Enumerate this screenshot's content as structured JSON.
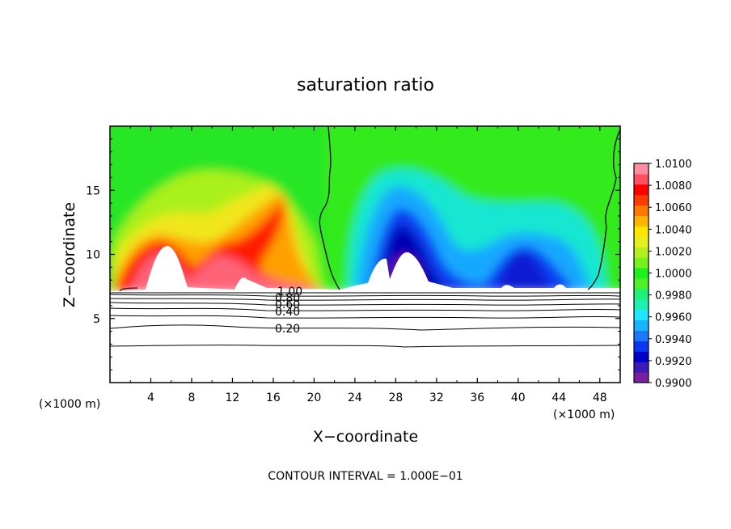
{
  "chart_data": {
    "type": "heatmap",
    "title": "saturation ratio",
    "xlabel": "X−coordinate",
    "ylabel": "Z−coordinate",
    "x_unit_left": "(×1000 m)",
    "x_unit_right": "(×1000 m)",
    "footer": "CONTOUR INTERVAL = 1.000E−01",
    "xlim": [
      0,
      50
    ],
    "ylim": [
      0,
      20
    ],
    "x_ticks": [
      4,
      8,
      12,
      16,
      20,
      24,
      28,
      32,
      36,
      40,
      44,
      48
    ],
    "x_tick_labels": [
      "4",
      "8",
      "12",
      "16",
      "20",
      "24",
      "28",
      "32",
      "36",
      "40",
      "44",
      "48"
    ],
    "y_ticks": [
      5,
      10,
      15
    ],
    "y_tick_labels": [
      "5",
      "10",
      "15"
    ],
    "colorbar": {
      "min": 0.99,
      "max": 1.01,
      "labels": [
        "1.0100",
        "1.0080",
        "1.0060",
        "1.0040",
        "1.0020",
        "1.0000",
        "0.9980",
        "0.9960",
        "0.9940",
        "0.9920",
        "0.9900"
      ],
      "colors": [
        "#7a1fa2",
        "#3a1ab8",
        "#0000c8",
        "#0a38f0",
        "#1e78ff",
        "#18b4ff",
        "#1ee6ff",
        "#1ef0b4",
        "#1ef078",
        "#50f028",
        "#1ef01e",
        "#78f01e",
        "#b4f01e",
        "#e6f01e",
        "#ffe600",
        "#ffb400",
        "#ff7800",
        "#ff3c00",
        "#ff0000",
        "#ff5064",
        "#ff8ca0"
      ]
    },
    "contour_labels": [
      "1.00",
      "0.80",
      "0.60",
      "0.40",
      "0.20"
    ],
    "contour_levels": [
      0.2,
      0.4,
      0.6,
      0.8,
      1.0
    ],
    "terrain_top_z": 7.2
  }
}
